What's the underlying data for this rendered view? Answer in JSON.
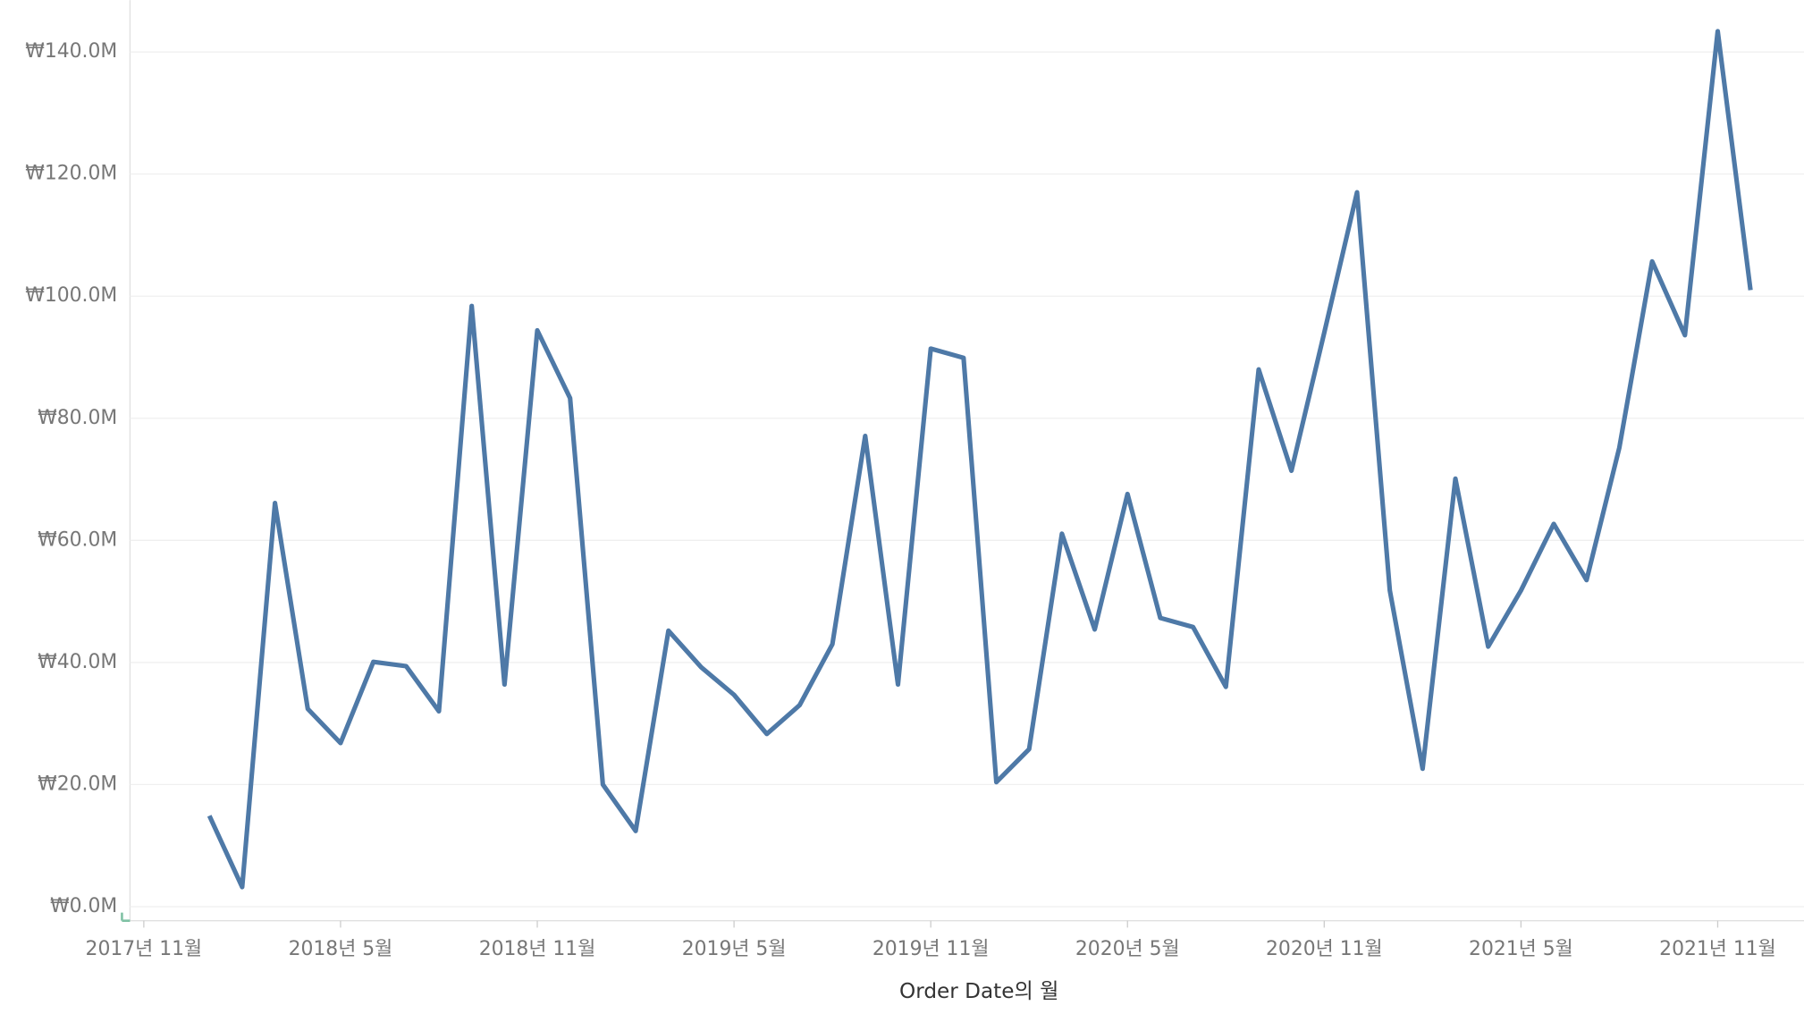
{
  "chart_data": {
    "type": "line",
    "x_label": "Order Date의 월",
    "x": [
      "2018-01",
      "2018-02",
      "2018-03",
      "2018-04",
      "2018-05",
      "2018-06",
      "2018-07",
      "2018-08",
      "2018-09",
      "2018-10",
      "2018-11",
      "2018-12",
      "2019-01",
      "2019-02",
      "2019-03",
      "2019-04",
      "2019-05",
      "2019-06",
      "2019-07",
      "2019-08",
      "2019-09",
      "2019-10",
      "2019-11",
      "2019-12",
      "2020-01",
      "2020-02",
      "2020-03",
      "2020-04",
      "2020-05",
      "2020-06",
      "2020-07",
      "2020-08",
      "2020-09",
      "2020-10",
      "2020-11",
      "2020-12",
      "2021-01",
      "2021-02",
      "2021-03",
      "2021-04",
      "2021-05",
      "2021-06",
      "2021-07",
      "2021-08",
      "2021-09",
      "2021-10",
      "2021-11",
      "2021-12"
    ],
    "series": [
      {
        "color": "#4e79a7",
        "values": [
          14900000,
          3200000,
          66100000,
          32400000,
          26800000,
          40100000,
          39400000,
          32000000,
          98400000,
          36400000,
          94400000,
          83300000,
          20000000,
          12400000,
          45200000,
          39200000,
          34700000,
          28300000,
          33000000,
          43000000,
          77100000,
          36400000,
          91400000,
          89900000,
          20400000,
          25800000,
          61100000,
          45400000,
          67600000,
          47300000,
          45800000,
          36000000,
          88000000,
          71400000,
          94000000,
          117000000,
          51800000,
          22600000,
          70100000,
          42600000,
          51800000,
          62700000,
          53500000,
          75200000,
          105700000,
          93600000,
          143400000,
          101000000
        ]
      }
    ],
    "xlim": [
      "2017-11",
      "2022-01"
    ],
    "xticks": [
      {
        "value": "2017-11",
        "label": "2017년 11월"
      },
      {
        "value": "2018-05",
        "label": "2018년 5월"
      },
      {
        "value": "2018-11",
        "label": "2018년 11월"
      },
      {
        "value": "2019-05",
        "label": "2019년 5월"
      },
      {
        "value": "2019-11",
        "label": "2019년 11월"
      },
      {
        "value": "2020-05",
        "label": "2020년 5월"
      },
      {
        "value": "2020-11",
        "label": "2020년 11월"
      },
      {
        "value": "2021-05",
        "label": "2021년 5월"
      },
      {
        "value": "2021-11",
        "label": "2021년 11월"
      }
    ],
    "ylim": [
      -2300000,
      148500000
    ],
    "yticks": [
      {
        "value": 0,
        "label": "₩0.0M"
      },
      {
        "value": 20000000,
        "label": "₩20.0M"
      },
      {
        "value": 40000000,
        "label": "₩40.0M"
      },
      {
        "value": 60000000,
        "label": "₩60.0M"
      },
      {
        "value": 80000000,
        "label": "₩80.0M"
      },
      {
        "value": 100000000,
        "label": "₩100.0M"
      },
      {
        "value": 120000000,
        "label": "₩120.0M"
      },
      {
        "value": 140000000,
        "label": "₩140.0M"
      }
    ],
    "grid": true
  }
}
